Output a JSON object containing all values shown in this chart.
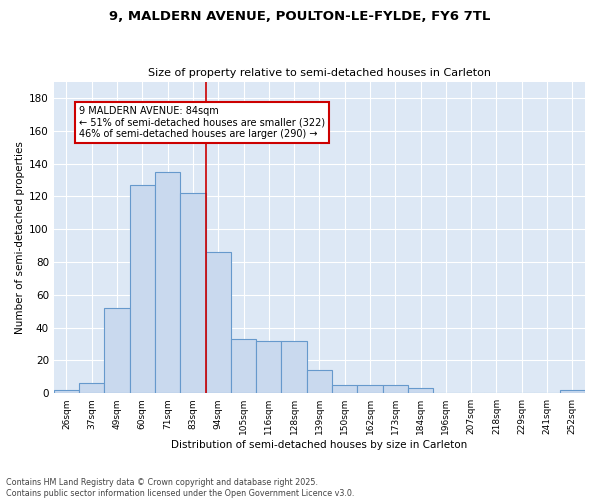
{
  "title1": "9, MALDERN AVENUE, POULTON-LE-FYLDE, FY6 7TL",
  "title2": "Size of property relative to semi-detached houses in Carleton",
  "xlabel": "Distribution of semi-detached houses by size in Carleton",
  "ylabel": "Number of semi-detached properties",
  "categories": [
    "26sqm",
    "37sqm",
    "49sqm",
    "60sqm",
    "71sqm",
    "83sqm",
    "94sqm",
    "105sqm",
    "116sqm",
    "128sqm",
    "139sqm",
    "150sqm",
    "162sqm",
    "173sqm",
    "184sqm",
    "196sqm",
    "207sqm",
    "218sqm",
    "229sqm",
    "241sqm",
    "252sqm"
  ],
  "values": [
    2,
    6,
    52,
    127,
    135,
    122,
    86,
    33,
    32,
    32,
    14,
    5,
    5,
    5,
    3,
    0,
    0,
    0,
    0,
    0,
    2
  ],
  "bar_color": "#c9d9ee",
  "bar_edge_color": "#6699cc",
  "vline_x": 5.5,
  "annotation_title": "9 MALDERN AVENUE: 84sqm",
  "annotation_line1": "← 51% of semi-detached houses are smaller (322)",
  "annotation_line2": "46% of semi-detached houses are larger (290) →",
  "annotation_box_color": "#ffffff",
  "annotation_box_edge": "#cc0000",
  "vline_color": "#cc0000",
  "ylim": [
    0,
    190
  ],
  "yticks": [
    0,
    20,
    40,
    60,
    80,
    100,
    120,
    140,
    160,
    180
  ],
  "footnote1": "Contains HM Land Registry data © Crown copyright and database right 2025.",
  "footnote2": "Contains public sector information licensed under the Open Government Licence v3.0.",
  "bg_color": "#dde8f5",
  "fig_bg_color": "#ffffff",
  "grid_color": "#ffffff"
}
